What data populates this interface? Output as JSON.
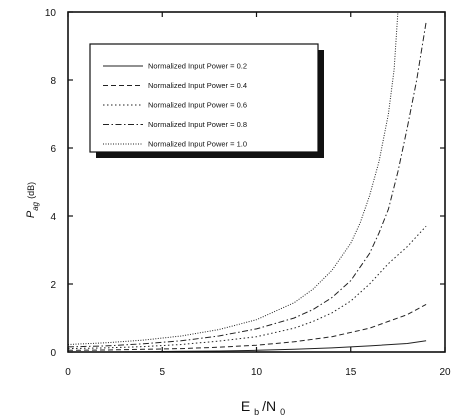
{
  "chart_data": {
    "type": "line",
    "title": "",
    "xlabel": {
      "main": "E",
      "sub1": "b",
      "mid": "/N",
      "sub2": "0"
    },
    "ylabel": {
      "main": "P",
      "sub": "ag",
      "unit": "(dB)"
    },
    "xlim": [
      0,
      20
    ],
    "ylim": [
      0,
      10
    ],
    "x_ticks": [
      0,
      5,
      10,
      15,
      20
    ],
    "y_ticks": [
      0,
      2,
      4,
      6,
      8,
      10
    ],
    "grid": false,
    "legend_position": "top-left",
    "series": [
      {
        "name": "Normalized Input Power = 0.2",
        "dash": "solid",
        "points": [
          [
            0,
            0.0
          ],
          [
            2,
            0.0
          ],
          [
            4,
            0.01
          ],
          [
            6,
            0.02
          ],
          [
            8,
            0.03
          ],
          [
            10,
            0.05
          ],
          [
            12,
            0.08
          ],
          [
            14,
            0.12
          ],
          [
            16,
            0.18
          ],
          [
            18,
            0.25
          ],
          [
            19,
            0.33
          ]
        ]
      },
      {
        "name": "Normalized Input Power = 0.4",
        "dash": "dashed",
        "points": [
          [
            0,
            0.05
          ],
          [
            2,
            0.06
          ],
          [
            4,
            0.08
          ],
          [
            6,
            0.1
          ],
          [
            8,
            0.14
          ],
          [
            10,
            0.2
          ],
          [
            12,
            0.3
          ],
          [
            14,
            0.45
          ],
          [
            16,
            0.7
          ],
          [
            17,
            0.9
          ],
          [
            18,
            1.1
          ],
          [
            19,
            1.4
          ]
        ]
      },
      {
        "name": "Normalized Input Power = 0.6",
        "dash": "dotted",
        "points": [
          [
            0,
            0.1
          ],
          [
            2,
            0.12
          ],
          [
            4,
            0.16
          ],
          [
            6,
            0.22
          ],
          [
            8,
            0.32
          ],
          [
            10,
            0.45
          ],
          [
            12,
            0.7
          ],
          [
            13,
            0.9
          ],
          [
            14,
            1.15
          ],
          [
            15,
            1.5
          ],
          [
            16,
            2.0
          ],
          [
            17,
            2.6
          ],
          [
            18,
            3.1
          ],
          [
            19,
            3.7
          ]
        ]
      },
      {
        "name": "Normalized Input Power = 0.8",
        "dash": "dashdot",
        "points": [
          [
            0,
            0.15
          ],
          [
            2,
            0.18
          ],
          [
            4,
            0.24
          ],
          [
            6,
            0.33
          ],
          [
            8,
            0.47
          ],
          [
            10,
            0.68
          ],
          [
            12,
            1.0
          ],
          [
            13,
            1.25
          ],
          [
            14,
            1.6
          ],
          [
            15,
            2.1
          ],
          [
            16,
            2.9
          ],
          [
            16.5,
            3.5
          ],
          [
            17,
            4.2
          ],
          [
            17.5,
            5.3
          ],
          [
            18,
            6.6
          ],
          [
            18.5,
            8.0
          ],
          [
            19,
            9.7
          ]
        ]
      },
      {
        "name": "Normalized Input Power = 1.0",
        "dash": "densedot",
        "points": [
          [
            0,
            0.22
          ],
          [
            2,
            0.27
          ],
          [
            4,
            0.35
          ],
          [
            6,
            0.47
          ],
          [
            8,
            0.66
          ],
          [
            10,
            0.95
          ],
          [
            12,
            1.45
          ],
          [
            13,
            1.85
          ],
          [
            14,
            2.4
          ],
          [
            15,
            3.2
          ],
          [
            15.5,
            3.8
          ],
          [
            16,
            4.6
          ],
          [
            16.5,
            5.6
          ],
          [
            17,
            7.0
          ],
          [
            17.3,
            8.3
          ],
          [
            17.5,
            10.0
          ]
        ]
      }
    ]
  }
}
